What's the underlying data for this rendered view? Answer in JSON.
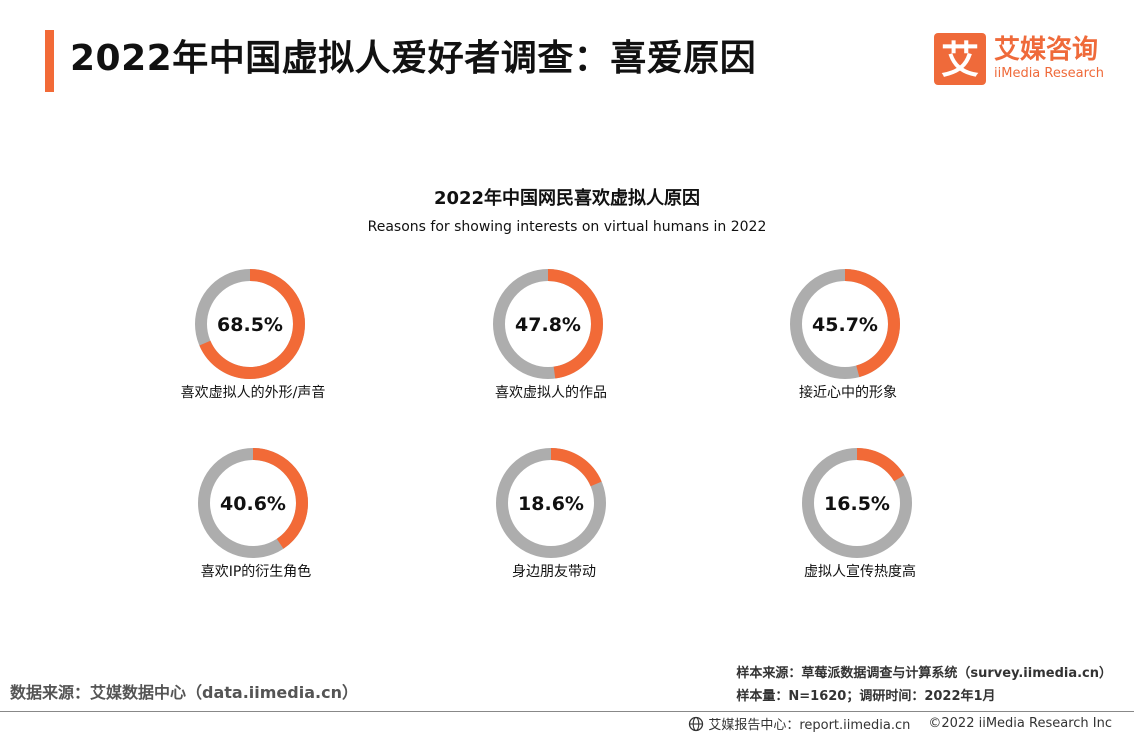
{
  "header": {
    "title": "2022年中国虚拟人爱好者调查：喜爱原因",
    "accent_color": "#f26a37"
  },
  "logo": {
    "glyph": "艾",
    "name": "艾媒咨询",
    "sub": "iiMedia Research",
    "color": "#ef6a3a"
  },
  "chart_data": {
    "type": "pie",
    "subtype": "donut-grid",
    "title": "2022年中国网民喜欢虚拟人原因",
    "subtitle": "Reasons for showing interests on virtual humans in 2022",
    "unit": "%",
    "highlight_color": "#f26a37",
    "remainder_color": "#adadad",
    "categories": [
      "喜欢虚拟人的外形/声音",
      "喜欢虚拟人的作品",
      "接近心中的形象",
      "喜欢IP的衍生角色",
      "身边朋友带动",
      "虚拟人宣传热度高"
    ],
    "values": [
      68.5,
      47.8,
      45.7,
      40.6,
      18.6,
      16.5
    ],
    "value_labels": [
      "68.5%",
      "47.8%",
      "45.7%",
      "40.6%",
      "18.6%",
      "16.5%"
    ]
  },
  "sources": {
    "left": "数据来源：艾媒数据中心（data.iimedia.cn）",
    "sample_source": "样本来源：草莓派数据调查与计算系统（survey.iimedia.cn）",
    "sample_size": "样本量：N=1620；调研时间：2022年1月"
  },
  "footer": {
    "report_center": "艾媒报告中心：report.iimedia.cn",
    "copyright": "©2022 iiMedia Research Inc"
  }
}
